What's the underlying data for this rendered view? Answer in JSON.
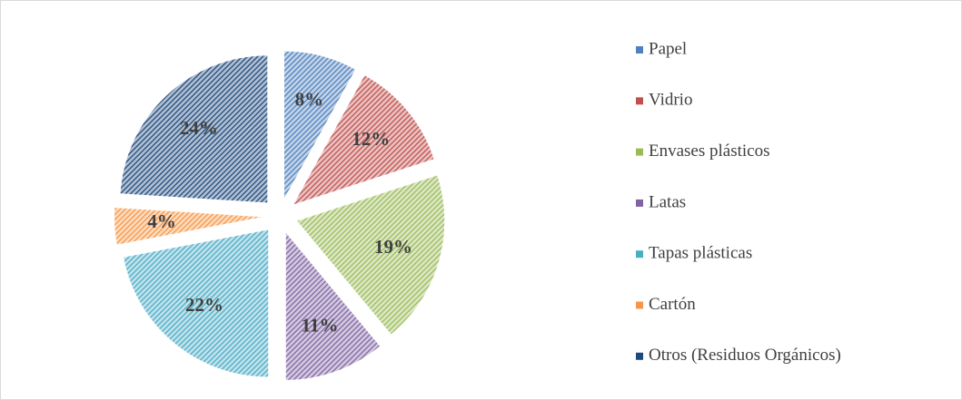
{
  "chart_data": {
    "type": "pie",
    "categories": [
      "Papel",
      "Vidrio",
      "Envases plásticos",
      "Latas",
      "Tapas plásticas",
      "Cartón",
      "Otros (Residuos Orgánicos)"
    ],
    "values": [
      8,
      12,
      19,
      11,
      22,
      4,
      24
    ],
    "value_labels": [
      "8%",
      "12%",
      "19%",
      "11%",
      "22%",
      "4%",
      "24%"
    ],
    "colors": [
      "#4f81bd",
      "#c0504d",
      "#9bbb59",
      "#8064a2",
      "#4bacc6",
      "#f79646",
      "#1f497d"
    ],
    "legend": "right"
  }
}
